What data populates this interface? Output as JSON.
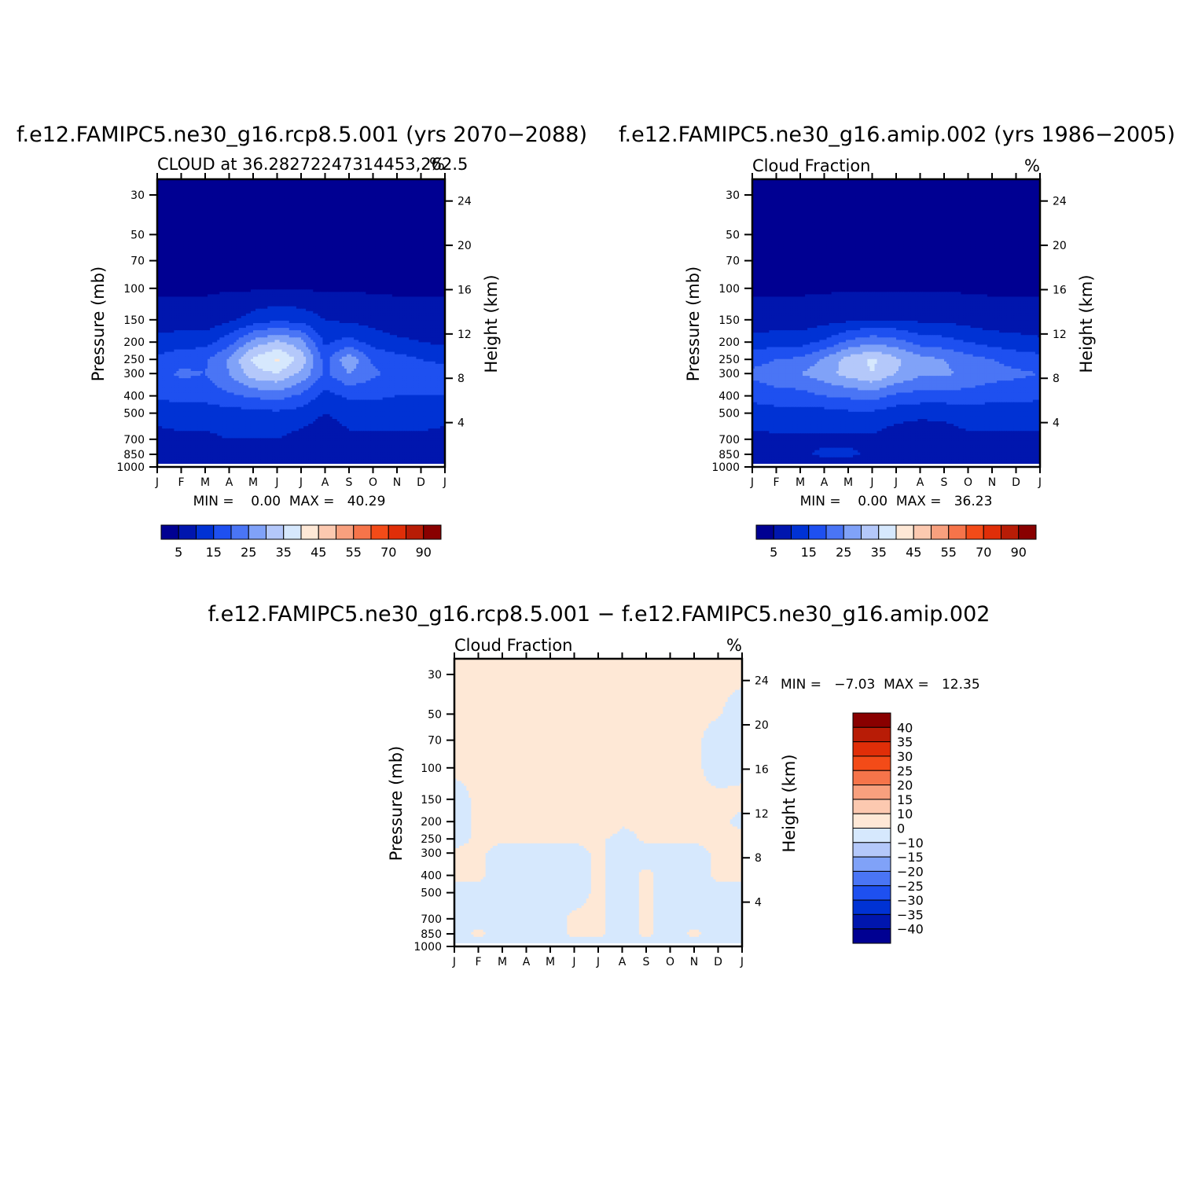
{
  "palette": {
    "full": [
      "#000092",
      "#0016AE",
      "#0032D4",
      "#1E50F0",
      "#4A75F5",
      "#80A2F8",
      "#B4C8FA",
      "#D6E8FD",
      "#FEE8D6",
      "#FCC9B0",
      "#F8A07E",
      "#F6744A",
      "#F34B18",
      "#E02E08",
      "#B81C06",
      "#890000"
    ],
    "diff": [
      "#000092",
      "#0016AE",
      "#0032D4",
      "#1E50F0",
      "#4A75F5",
      "#80A2F8",
      "#B4C8FA",
      "#D6E8FD",
      "#FEE8D6",
      "#FCC9B0",
      "#F8A07E",
      "#F6744A",
      "#F34B18",
      "#E02E08",
      "#B81C06",
      "#890000"
    ]
  },
  "chart_data": [
    {
      "type": "heatmap",
      "title": "f.e12.FAMIPC5.ne30_g16.rcp8.5.001 (yrs 2070−2088)",
      "left_subtitle": "CLOUD at 36.28272247314453,262.5",
      "right_subtitle": "%",
      "ylabel": "Pressure (mb)",
      "y2label": "Height (km)",
      "x_ticks": [
        "J",
        "F",
        "M",
        "A",
        "M",
        "J",
        "J",
        "A",
        "S",
        "O",
        "N",
        "D",
        "J"
      ],
      "y_ticks": [
        "30",
        "50",
        "70",
        "100",
        "150",
        "200",
        "250",
        "300",
        "400",
        "500",
        "700",
        "850",
        "1000"
      ],
      "y2_ticks": [
        "24",
        "20",
        "16",
        "12",
        "8",
        "4"
      ],
      "minmax": "MIN =    0.00  MAX =   40.29",
      "levels": [
        "5",
        "15",
        "25",
        "35",
        "45",
        "55",
        "70",
        "90"
      ],
      "field": {
        "months": [
          0,
          1,
          2,
          3,
          4,
          5,
          6,
          7,
          8,
          9,
          10,
          11,
          12
        ],
        "pressure_mb": [
          30,
          100,
          150,
          200,
          250,
          300,
          400,
          500,
          700,
          850,
          1000
        ],
        "values": [
          [
            0,
            0,
            0,
            0,
            0,
            0,
            0,
            0,
            0,
            0,
            0,
            0,
            0
          ],
          [
            0,
            0,
            0,
            0,
            0,
            0,
            0,
            0,
            0,
            0,
            0,
            0,
            0
          ],
          [
            2,
            2,
            2,
            4,
            7,
            9,
            8,
            5,
            4,
            3,
            2,
            2,
            2
          ],
          [
            7,
            8,
            8,
            13,
            22,
            26,
            22,
            9,
            12,
            8,
            6,
            5,
            4
          ],
          [
            11,
            13,
            14,
            21,
            31,
            36,
            28,
            13,
            24,
            14,
            12,
            10,
            9
          ],
          [
            13,
            16,
            15,
            20,
            28,
            30,
            24,
            14,
            20,
            16,
            13,
            12,
            12
          ],
          [
            11,
            12,
            12,
            14,
            16,
            17,
            14,
            8,
            11,
            11,
            10,
            10,
            10
          ],
          [
            6,
            7,
            7,
            8,
            8,
            9,
            8,
            5,
            7,
            7,
            7,
            7,
            6
          ],
          [
            4,
            4,
            4,
            5,
            5,
            5,
            3,
            1,
            4,
            4,
            4,
            4,
            4
          ],
          [
            4,
            4,
            4,
            4,
            4,
            4,
            2,
            1,
            3,
            3,
            3,
            3,
            3
          ],
          [
            1,
            1,
            1,
            1,
            1,
            1,
            1,
            1,
            1,
            1,
            1,
            1,
            1
          ]
        ]
      }
    },
    {
      "type": "heatmap",
      "title": "f.e12.FAMIPC5.ne30_g16.amip.002 (yrs 1986−2005)",
      "left_subtitle": "Cloud Fraction",
      "right_subtitle": "%",
      "ylabel": "Pressure (mb)",
      "y2label": "Height (km)",
      "x_ticks": [
        "J",
        "F",
        "M",
        "A",
        "M",
        "J",
        "J",
        "A",
        "S",
        "O",
        "N",
        "D",
        "J"
      ],
      "y_ticks": [
        "30",
        "50",
        "70",
        "100",
        "150",
        "200",
        "250",
        "300",
        "400",
        "500",
        "700",
        "850",
        "1000"
      ],
      "y2_ticks": [
        "24",
        "20",
        "16",
        "12",
        "8",
        "4"
      ],
      "minmax": "MIN =    0.00  MAX =   36.23",
      "levels": [
        "5",
        "15",
        "25",
        "35",
        "45",
        "55",
        "70",
        "90"
      ],
      "field": {
        "months": [
          0,
          1,
          2,
          3,
          4,
          5,
          6,
          7,
          8,
          9,
          10,
          11,
          12
        ],
        "pressure_mb": [
          30,
          100,
          150,
          200,
          250,
          300,
          400,
          500,
          700,
          850,
          1000
        ],
        "values": [
          [
            0,
            0,
            0,
            0,
            0,
            0,
            0,
            0,
            0,
            0,
            0,
            0,
            0
          ],
          [
            0,
            0,
            0,
            0,
            0,
            0,
            0,
            0,
            0,
            0,
            0,
            0,
            0
          ],
          [
            2,
            2,
            2,
            3,
            4,
            5,
            5,
            4,
            4,
            3,
            2,
            2,
            2
          ],
          [
            7,
            8,
            8,
            11,
            16,
            19,
            17,
            13,
            12,
            10,
            8,
            7,
            6
          ],
          [
            13,
            15,
            16,
            21,
            27,
            31,
            26,
            22,
            20,
            17,
            15,
            13,
            12
          ],
          [
            16,
            18,
            20,
            23,
            27,
            30,
            25,
            21,
            21,
            19,
            17,
            16,
            15
          ],
          [
            12,
            13,
            13,
            15,
            16,
            17,
            14,
            13,
            13,
            13,
            12,
            12,
            11
          ],
          [
            7,
            8,
            8,
            8,
            9,
            9,
            7,
            6,
            6,
            7,
            7,
            7,
            7
          ],
          [
            4,
            4,
            4,
            4,
            4,
            4,
            2,
            2,
            3,
            4,
            4,
            4,
            4
          ],
          [
            4,
            4,
            4,
            6,
            6,
            4,
            2,
            2,
            3,
            4,
            4,
            4,
            4
          ],
          [
            1,
            1,
            1,
            1,
            1,
            1,
            1,
            1,
            1,
            1,
            1,
            1,
            1
          ]
        ]
      }
    },
    {
      "type": "heatmap",
      "title": "f.e12.FAMIPC5.ne30_g16.rcp8.5.001 − f.e12.FAMIPC5.ne30_g16.amip.002",
      "left_subtitle": "Cloud Fraction",
      "right_subtitle": "%",
      "ylabel": "Pressure (mb)",
      "y2label": "Height (km)",
      "x_ticks": [
        "J",
        "F",
        "M",
        "A",
        "M",
        "J",
        "J",
        "A",
        "S",
        "O",
        "N",
        "D",
        "J"
      ],
      "y_ticks": [
        "30",
        "50",
        "70",
        "100",
        "150",
        "200",
        "250",
        "300",
        "400",
        "500",
        "700",
        "850",
        "1000"
      ],
      "y2_ticks": [
        "24",
        "20",
        "16",
        "12",
        "8",
        "4"
      ],
      "minmax": "MIN =   −7.03  MAX =   12.35",
      "levels": [
        "40",
        "35",
        "30",
        "25",
        "20",
        "15",
        "10",
        "0",
        "−10",
        "−15",
        "−20",
        "−25",
        "−30",
        "−35",
        "−40"
      ],
      "field": {
        "months": [
          0,
          1,
          2,
          3,
          4,
          5,
          6,
          7,
          8,
          9,
          10,
          11,
          12
        ],
        "pressure_mb": [
          30,
          50,
          70,
          100,
          150,
          200,
          250,
          300,
          400,
          500,
          700,
          850,
          1000
        ],
        "values": [
          [
            0.5,
            0.5,
            0.5,
            0.5,
            0.5,
            0.5,
            0.5,
            0.5,
            0.5,
            0.5,
            0.5,
            0.5,
            0.5
          ],
          [
            0.5,
            0.5,
            0.5,
            0.5,
            0.5,
            0.5,
            0.5,
            0.5,
            0.5,
            0.5,
            0.5,
            0.2,
            -1
          ],
          [
            0.5,
            0.5,
            0.5,
            0.5,
            0.5,
            0.5,
            0.5,
            0.5,
            0.5,
            0.5,
            0.5,
            -1,
            -1
          ],
          [
            0.5,
            0.5,
            0.5,
            0.5,
            0.5,
            0.5,
            0.5,
            0.5,
            0.5,
            0.5,
            0.5,
            -1,
            -0.5
          ],
          [
            -1,
            0.5,
            0.5,
            0.5,
            2,
            3,
            2,
            0.5,
            0.5,
            0.5,
            0.5,
            0.5,
            0.5
          ],
          [
            -1,
            0.5,
            0.5,
            0.5,
            3,
            5,
            3,
            0.5,
            0.5,
            0.5,
            0.5,
            0.5,
            -0.5
          ],
          [
            -1,
            0.5,
            0.5,
            0.5,
            0.5,
            0.5,
            0.5,
            -1,
            0.5,
            0.5,
            0.5,
            0.5,
            0.5
          ],
          [
            0.5,
            0.5,
            -1,
            -1,
            -1,
            -1,
            0.5,
            -1,
            -1,
            -1,
            -1,
            0.5,
            0.5
          ],
          [
            0.5,
            0.5,
            -1,
            -1,
            -1,
            -1,
            0.5,
            -1,
            0.5,
            -1,
            -1,
            0.5,
            0.5
          ],
          [
            -1,
            -1,
            -1,
            -1,
            -1,
            -1,
            0.5,
            -1,
            0.5,
            -1,
            -1,
            -1,
            -1
          ],
          [
            -1,
            -1,
            -1,
            -1,
            -1,
            0.5,
            0.5,
            -1,
            0.5,
            -1,
            -1,
            -1,
            -1
          ],
          [
            -1,
            0.5,
            -1,
            -1,
            -1,
            0.5,
            0.5,
            -1,
            0.5,
            -1,
            0.5,
            -1,
            -1
          ],
          [
            -1,
            -1,
            -1,
            -1,
            -1,
            -1,
            -1,
            -1,
            -1,
            -1,
            -1,
            -1,
            -1
          ]
        ]
      }
    }
  ]
}
